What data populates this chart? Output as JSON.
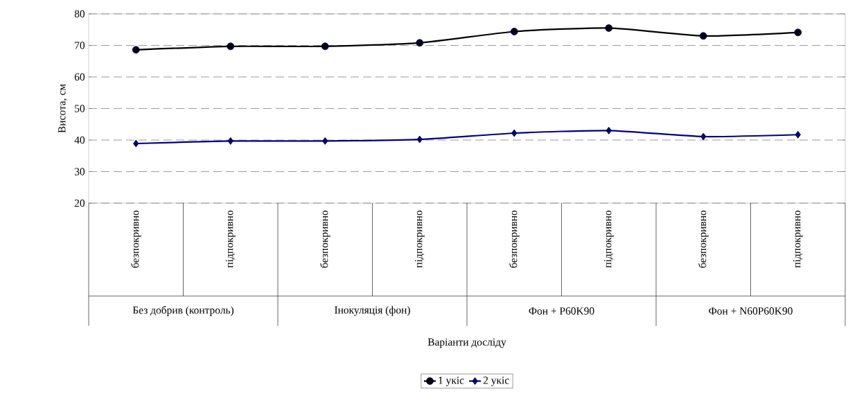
{
  "chart_data": {
    "type": "line",
    "ylabel": "Висота, см",
    "categories": [
      "безпокривно",
      "підпокривно",
      "безпокривно",
      "підпокривно",
      "безпокривно",
      "підпокривно",
      "безпокривно",
      "підпокривно"
    ],
    "annotations": [
      "Без добрив (контроль)",
      "Інокуляція (фон)",
      "Фон + P60K90",
      "Фон + N60P60K90",
      "Варіанти досліду"
    ],
    "series": [
      {
        "name": "1 укіс",
        "color": "#000000",
        "marker": "circle",
        "values": [
          68.6,
          69.7,
          69.7,
          70.8,
          74.4,
          75.5,
          73,
          74.1
        ]
      },
      {
        "name": "2 укіс",
        "color": "#000080",
        "marker": "diamond",
        "values": [
          38.9,
          39.7,
          39.7,
          40.2,
          42.2,
          43,
          41.1,
          41.7
        ]
      }
    ],
    "ylim": [
      20,
      80
    ],
    "yticks": [
      20,
      30,
      40,
      50,
      60,
      70,
      80
    ],
    "grid": "y",
    "legend": "bottom",
    "line_style": "solid"
  }
}
